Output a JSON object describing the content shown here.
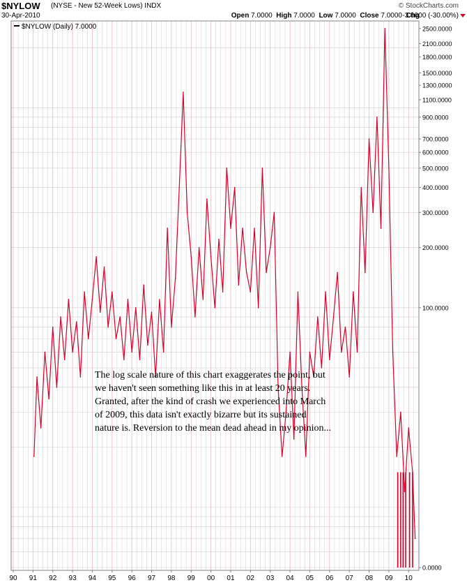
{
  "header": {
    "symbol": "$NYLOW",
    "description": "(NYSE - New 52-Week Lows) INDX",
    "watermark": "© StockCharts.com",
    "date": "30-Apr-2010",
    "open_label": "Open",
    "open": "7.0000",
    "high_label": "High",
    "high": "7.0000",
    "low_label": "Low",
    "low": "7.0000",
    "close_label": "Close",
    "close": "7.0000",
    "chg_label": "Chg",
    "chg": "-3.0000 (-30.00%)"
  },
  "legend": {
    "text": "$NYLOW (Daily) 7.0000"
  },
  "note": "The log scale nature of this chart exaggerates the point, but we haven't seen something like this in at least 20 years. Granted, after the kind of crash we experienced into March of 2009, this data isn't exactly bizarre but its sustained nature is. Reversion to the mean dead ahead in my opinion...",
  "colors": {
    "series": "#d4002a",
    "grid": "#d0d0d0",
    "year_grid": "#e6c4c4"
  },
  "chart_data": {
    "type": "line",
    "scale": "log",
    "grid": true,
    "legend_position": "top-left",
    "y_tick_labels": [
      "2500.0000",
      "2100.0000",
      "1800.0000",
      "1500.0000",
      "1300.0000",
      "1100.0000",
      "900.0000",
      "700.0000",
      "600.0000",
      "500.0000",
      "400.0000",
      "300.0000",
      "200.0000",
      "100.0000",
      "0.0000"
    ],
    "y_ticks": [
      2500,
      2100,
      1800,
      1500,
      1300,
      1100,
      900,
      700,
      600,
      500,
      400,
      300,
      200,
      100,
      0
    ],
    "x_tick_labels": [
      "90",
      "91",
      "92",
      "93",
      "94",
      "95",
      "96",
      "97",
      "98",
      "99",
      "00",
      "01",
      "02",
      "03",
      "04",
      "05",
      "06",
      "07",
      "08",
      "09",
      "10"
    ],
    "series": [
      {
        "name": "$NYLOW (Daily)",
        "points": [
          [
            1991.05,
            18
          ],
          [
            1991.2,
            45
          ],
          [
            1991.4,
            25
          ],
          [
            1991.6,
            60
          ],
          [
            1991.8,
            35
          ],
          [
            1992.0,
            80
          ],
          [
            1992.2,
            40
          ],
          [
            1992.4,
            90
          ],
          [
            1992.6,
            55
          ],
          [
            1992.8,
            110
          ],
          [
            1993.0,
            60
          ],
          [
            1993.2,
            85
          ],
          [
            1993.4,
            45
          ],
          [
            1993.6,
            120
          ],
          [
            1993.8,
            70
          ],
          [
            1994.0,
            110
          ],
          [
            1994.2,
            180
          ],
          [
            1994.4,
            95
          ],
          [
            1994.6,
            160
          ],
          [
            1994.8,
            80
          ],
          [
            1995.0,
            120
          ],
          [
            1995.2,
            70
          ],
          [
            1995.4,
            90
          ],
          [
            1995.6,
            55
          ],
          [
            1995.8,
            110
          ],
          [
            1996.0,
            60
          ],
          [
            1996.2,
            100
          ],
          [
            1996.4,
            55
          ],
          [
            1996.6,
            130
          ],
          [
            1996.8,
            65
          ],
          [
            1997.0,
            95
          ],
          [
            1997.2,
            45
          ],
          [
            1997.4,
            110
          ],
          [
            1997.6,
            60
          ],
          [
            1997.8,
            250
          ],
          [
            1998.0,
            80
          ],
          [
            1998.2,
            140
          ],
          [
            1998.4,
            400
          ],
          [
            1998.6,
            1200
          ],
          [
            1998.8,
            300
          ],
          [
            1999.0,
            180
          ],
          [
            1999.2,
            90
          ],
          [
            1999.4,
            200
          ],
          [
            1999.6,
            110
          ],
          [
            1999.8,
            350
          ],
          [
            2000.0,
            180
          ],
          [
            2000.2,
            100
          ],
          [
            2000.4,
            220
          ],
          [
            2000.6,
            120
          ],
          [
            2000.8,
            500
          ],
          [
            2001.0,
            250
          ],
          [
            2001.2,
            400
          ],
          [
            2001.4,
            130
          ],
          [
            2001.6,
            250
          ],
          [
            2001.8,
            150
          ],
          [
            2002.0,
            120
          ],
          [
            2002.2,
            250
          ],
          [
            2002.4,
            100
          ],
          [
            2002.6,
            500
          ],
          [
            2002.8,
            150
          ],
          [
            2003.0,
            200
          ],
          [
            2003.2,
            300
          ],
          [
            2003.4,
            40
          ],
          [
            2003.6,
            18
          ],
          [
            2003.8,
            30
          ],
          [
            2004.0,
            60
          ],
          [
            2004.2,
            22
          ],
          [
            2004.4,
            120
          ],
          [
            2004.6,
            40
          ],
          [
            2004.8,
            18
          ],
          [
            2005.0,
            60
          ],
          [
            2005.2,
            45
          ],
          [
            2005.4,
            90
          ],
          [
            2005.6,
            50
          ],
          [
            2005.8,
            120
          ],
          [
            2006.0,
            55
          ],
          [
            2006.2,
            90
          ],
          [
            2006.4,
            150
          ],
          [
            2006.6,
            60
          ],
          [
            2006.8,
            80
          ],
          [
            2007.0,
            45
          ],
          [
            2007.2,
            120
          ],
          [
            2007.4,
            60
          ],
          [
            2007.6,
            400
          ],
          [
            2007.8,
            150
          ],
          [
            2008.0,
            700
          ],
          [
            2008.2,
            300
          ],
          [
            2008.4,
            900
          ],
          [
            2008.6,
            250
          ],
          [
            2008.8,
            2500
          ],
          [
            2009.0,
            500
          ],
          [
            2009.2,
            60
          ],
          [
            2009.4,
            18
          ],
          [
            2009.6,
            30
          ],
          [
            2009.8,
            12
          ],
          [
            2010.0,
            25
          ],
          [
            2010.2,
            15
          ],
          [
            2010.33,
            7
          ]
        ]
      }
    ]
  }
}
